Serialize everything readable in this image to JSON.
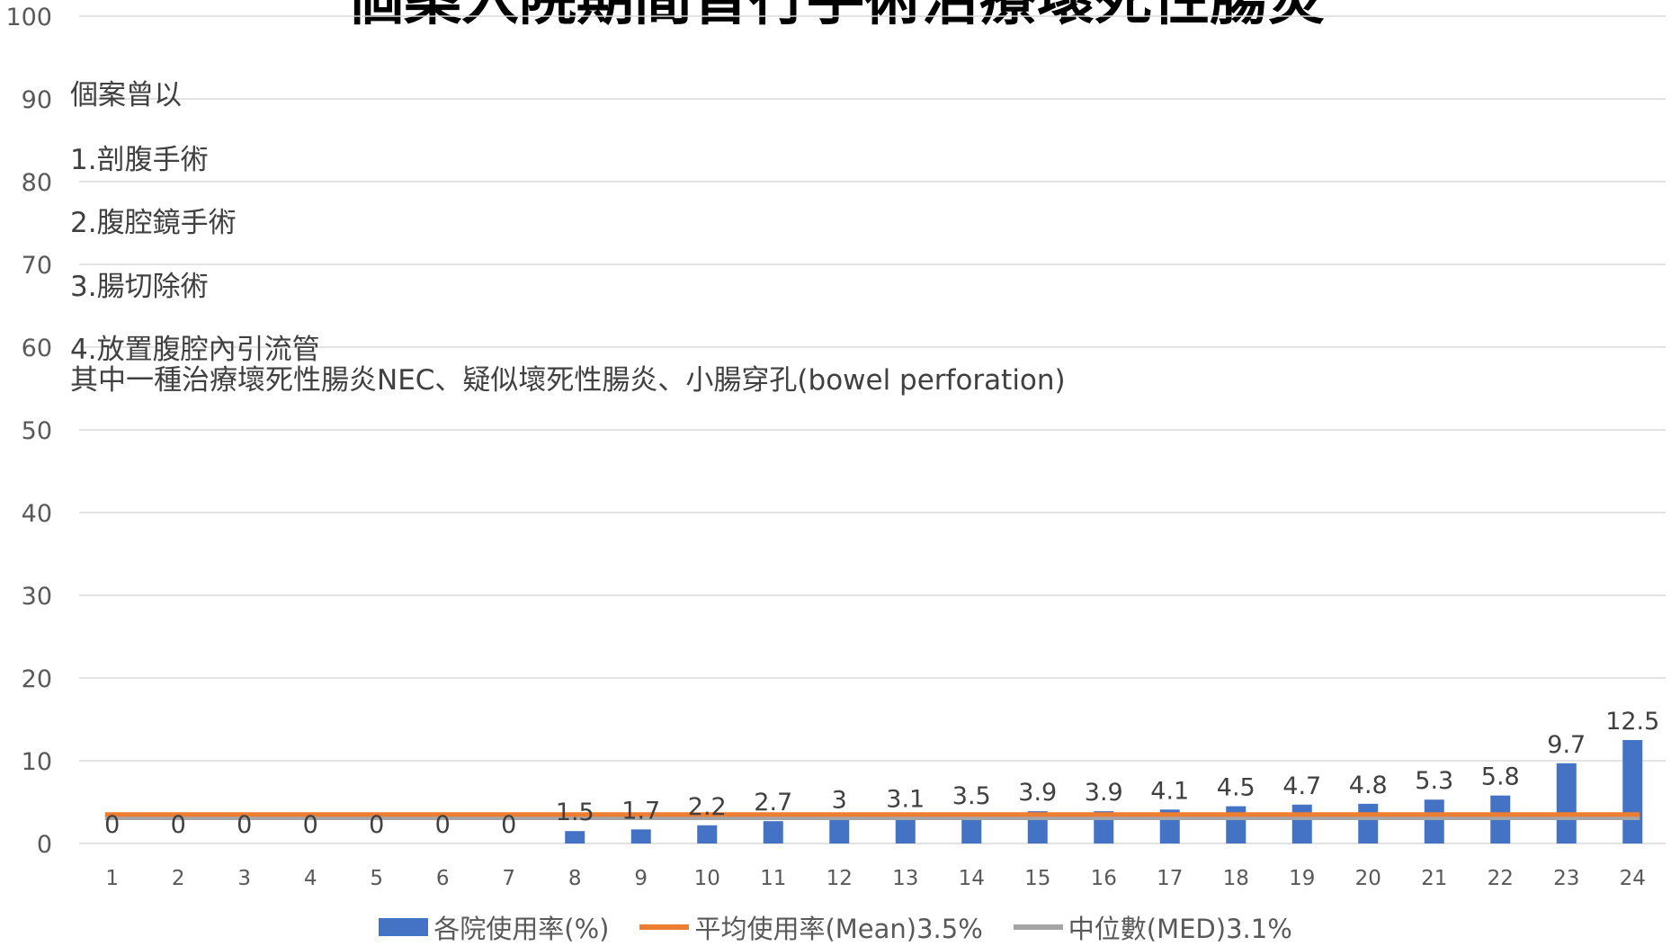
{
  "chart_data": {
    "type": "bar",
    "title": "個案入院期間曾行手術治療壞死性腸炎",
    "categories": [
      "1",
      "2",
      "3",
      "4",
      "5",
      "6",
      "7",
      "8",
      "9",
      "10",
      "11",
      "12",
      "13",
      "14",
      "15",
      "16",
      "17",
      "18",
      "19",
      "20",
      "21",
      "22",
      "23",
      "24"
    ],
    "series": [
      {
        "name": "各院使用率(%)",
        "type": "bar",
        "color": "#4472C4",
        "values": [
          0,
          0,
          0,
          0,
          0,
          0,
          0,
          1.5,
          1.7,
          2.2,
          2.7,
          3,
          3.1,
          3.5,
          3.9,
          3.9,
          4.1,
          4.5,
          4.7,
          4.8,
          5.3,
          5.8,
          9.7,
          12.5
        ]
      },
      {
        "name": "平均使用率(Mean)3.5%",
        "type": "line",
        "color": "#ED7D31",
        "value": 3.5
      },
      {
        "name": "中位數(MED)3.1%",
        "type": "line",
        "color": "#A5A5A5",
        "value": 3.1
      }
    ],
    "data_labels": [
      "0",
      "0",
      "0",
      "0",
      "0",
      "0",
      "0",
      "1.5",
      "1.7",
      "2.2",
      "2.7",
      "3",
      "3.1",
      "3.5",
      "3.9",
      "3.9",
      "4.1",
      "4.5",
      "4.7",
      "4.8",
      "5.3",
      "5.8",
      "9.7",
      "12.5"
    ],
    "yticks": [
      "0",
      "10",
      "20",
      "30",
      "40",
      "50",
      "60",
      "70",
      "80",
      "90",
      "100"
    ],
    "ylim": [
      0,
      100
    ],
    "grid": true,
    "legend": "bottom",
    "annotation_lines": [
      "個案曾以",
      "1.剖腹手術",
      "2.腹腔鏡手術",
      "3.腸切除術",
      "4.放置腹腔內引流管",
      "其中一種治療壞死性腸炎NEC、疑似壞死性腸炎、小腸穿孔(bowel perforation)"
    ]
  }
}
